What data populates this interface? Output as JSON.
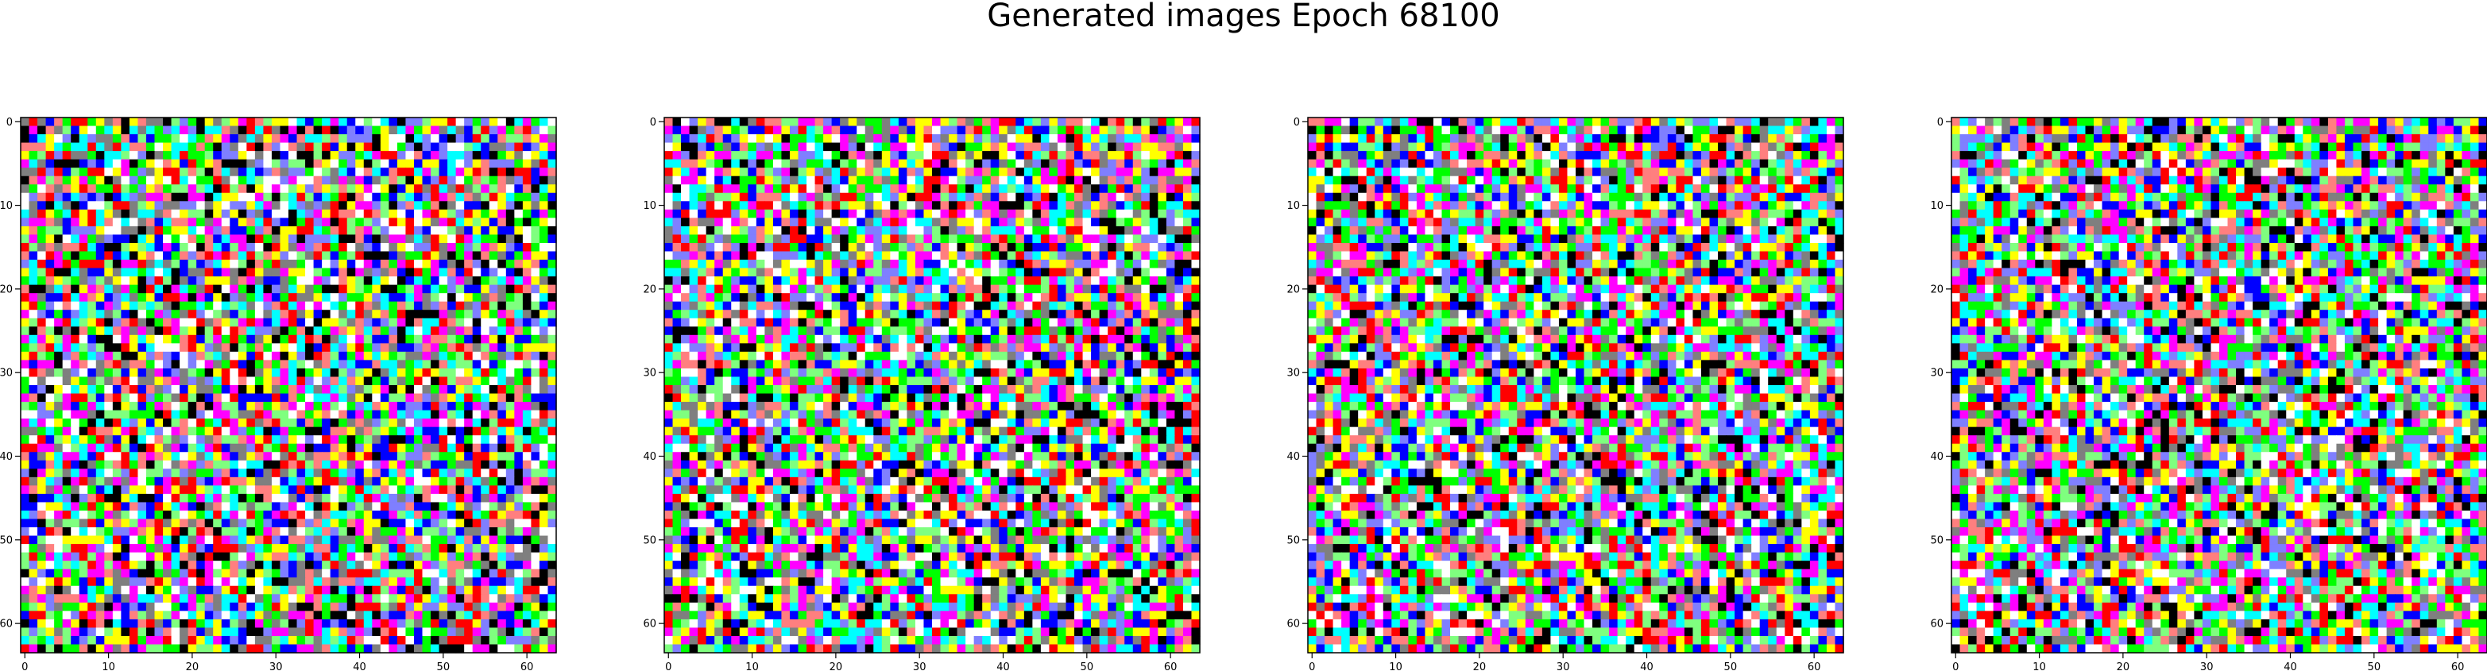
{
  "figure": {
    "title": "Generated images Epoch 68100"
  },
  "panels": [
    {
      "name": "generated-image-1",
      "image_size": 64,
      "x_ticks": [
        "0",
        "10",
        "20",
        "30",
        "40",
        "50",
        "60"
      ],
      "y_ticks": [
        "0",
        "10",
        "20",
        "30",
        "40",
        "50",
        "60"
      ]
    },
    {
      "name": "generated-image-2",
      "image_size": 64,
      "x_ticks": [
        "0",
        "10",
        "20",
        "30",
        "40",
        "50",
        "60"
      ],
      "y_ticks": [
        "0",
        "10",
        "20",
        "30",
        "40",
        "50",
        "60"
      ]
    },
    {
      "name": "generated-image-3",
      "image_size": 64,
      "x_ticks": [
        "0",
        "10",
        "20",
        "30",
        "40",
        "50",
        "60"
      ],
      "y_ticks": [
        "0",
        "10",
        "20",
        "30",
        "40",
        "50",
        "60"
      ]
    },
    {
      "name": "generated-image-4",
      "image_size": 64,
      "x_ticks": [
        "0",
        "10",
        "20",
        "30",
        "40",
        "50",
        "60"
      ],
      "y_ticks": [
        "0",
        "10",
        "20",
        "30",
        "40",
        "50",
        "60"
      ]
    }
  ],
  "palette": [
    "#000000",
    "#ffffff",
    "#ff0000",
    "#00ff00",
    "#0000ff",
    "#ffff00",
    "#ff00ff",
    "#00ffff",
    "#7f7f7f",
    "#ff7f7f",
    "#7fff7f",
    "#7f7fff"
  ]
}
